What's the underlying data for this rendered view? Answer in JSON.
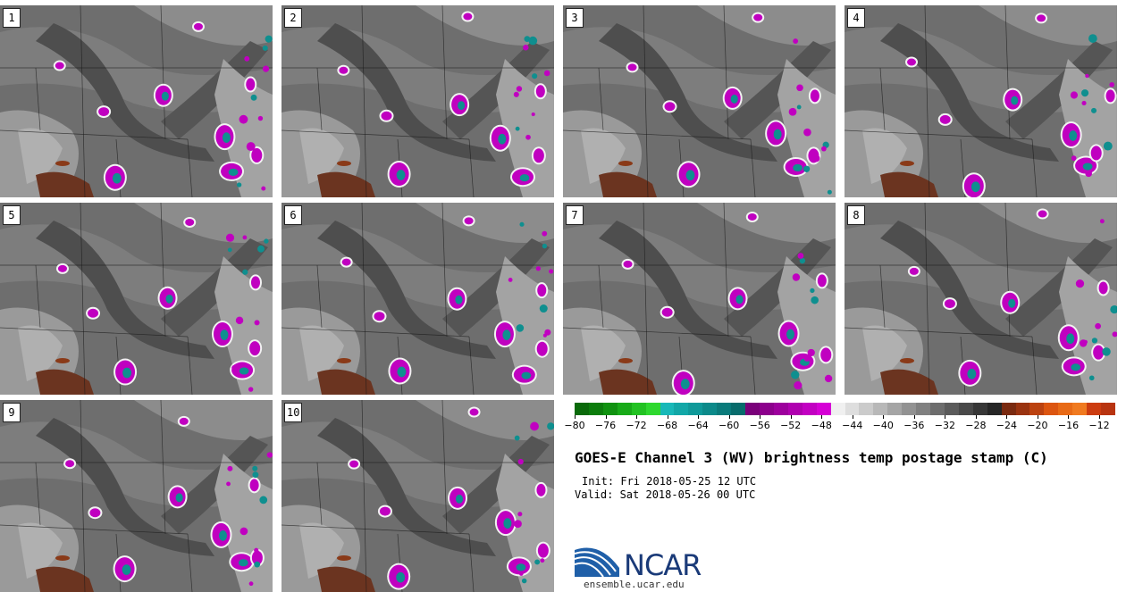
{
  "panels": [
    {
      "label": "1"
    },
    {
      "label": "2"
    },
    {
      "label": "3"
    },
    {
      "label": "4"
    },
    {
      "label": "5"
    },
    {
      "label": "6"
    },
    {
      "label": "7"
    },
    {
      "label": "8"
    },
    {
      "label": "9"
    },
    {
      "label": "10"
    }
  ],
  "colorbar": {
    "colors": [
      "#0a6a0a",
      "#0c7d0c",
      "#109210",
      "#18aa18",
      "#22c222",
      "#2ed82e",
      "#18b8b8",
      "#12a7a7",
      "#0f9999",
      "#0c8a8a",
      "#0a7b7b",
      "#086c6c",
      "#7a007a",
      "#8c008c",
      "#9d009d",
      "#b000b0",
      "#c200c2",
      "#d600d6",
      "#f0f0f0",
      "#dedede",
      "#cbcbcb",
      "#b8b8b8",
      "#a5a5a5",
      "#929292",
      "#808080",
      "#6d6d6d",
      "#5b5b5b",
      "#494949",
      "#373737",
      "#262626",
      "#7a2a10",
      "#9a3310",
      "#bb4210",
      "#dc5510",
      "#e86a16",
      "#f07a20",
      "#cc3c10",
      "#b83410"
    ],
    "tick_labels": [
      "-80",
      "-76",
      "-72",
      "-68",
      "-64",
      "-60",
      "-56",
      "-52",
      "-48",
      "-44",
      "-40",
      "-36",
      "-32",
      "-28",
      "-24",
      "-20",
      "-16",
      "-12"
    ],
    "tick_min": -80,
    "tick_max": -12
  },
  "title": "GOES-E Channel 3 (WV) brightness temp postage stamp (C)",
  "init": "Init: Fri 2018-05-25 12 UTC",
  "valid": "Valid: Sat 2018-05-26 00 UTC",
  "logo": {
    "text": "NCAR",
    "url": "ensemble.ucar.edu"
  }
}
